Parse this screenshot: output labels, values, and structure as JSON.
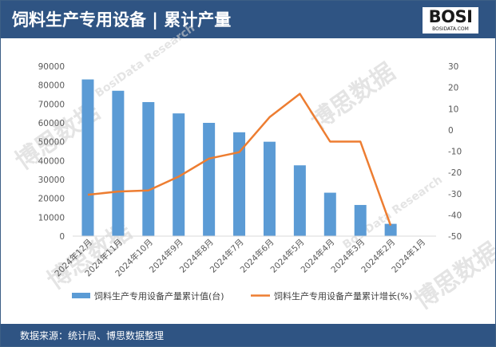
{
  "header": {
    "title": "饲料生产专用设备 | 累计产量",
    "logo_text": "BOSI",
    "logo_sub": "BOSIDATA.COM"
  },
  "footer": {
    "source": "数据来源：统计局、博思数据整理"
  },
  "watermark": {
    "text": "博思数据",
    "text_en": "BosiData Research"
  },
  "colors": {
    "header_bg": "#2f5483",
    "bar": "#5b9bd5",
    "line": "#ed7d31"
  },
  "chart_data": {
    "type": "bar",
    "categories": [
      "2024年12月",
      "2024年11月",
      "2024年10月",
      "2024年9月",
      "2024年8月",
      "2024年7月",
      "2024年6月",
      "2024年5月",
      "2024年4月",
      "2024年3月",
      "2024年2月",
      "2024年1月"
    ],
    "series": [
      {
        "name": "饲料生产专用设备产量累计值(台)",
        "type": "bar",
        "axis": "left",
        "values": [
          83000,
          77000,
          71000,
          65000,
          60000,
          55000,
          50000,
          37500,
          23000,
          16500,
          6500,
          null
        ]
      },
      {
        "name": "饲料生产专用设备产量累计增长(%)",
        "type": "line",
        "axis": "right",
        "values": [
          -30.5,
          -29,
          -28.5,
          -22,
          -13.5,
          -10.5,
          6,
          17,
          -5.5,
          -5.5,
          -45,
          null
        ]
      }
    ],
    "y_left": {
      "ylim": [
        0,
        90000
      ],
      "ticks": [
        0,
        10000,
        20000,
        30000,
        40000,
        50000,
        60000,
        70000,
        80000,
        90000
      ]
    },
    "y_right": {
      "ylim": [
        -50,
        30
      ],
      "ticks": [
        -50,
        -40,
        -30,
        -20,
        -10,
        0,
        10,
        20,
        30
      ]
    },
    "grid": false,
    "legend": "bottom"
  }
}
